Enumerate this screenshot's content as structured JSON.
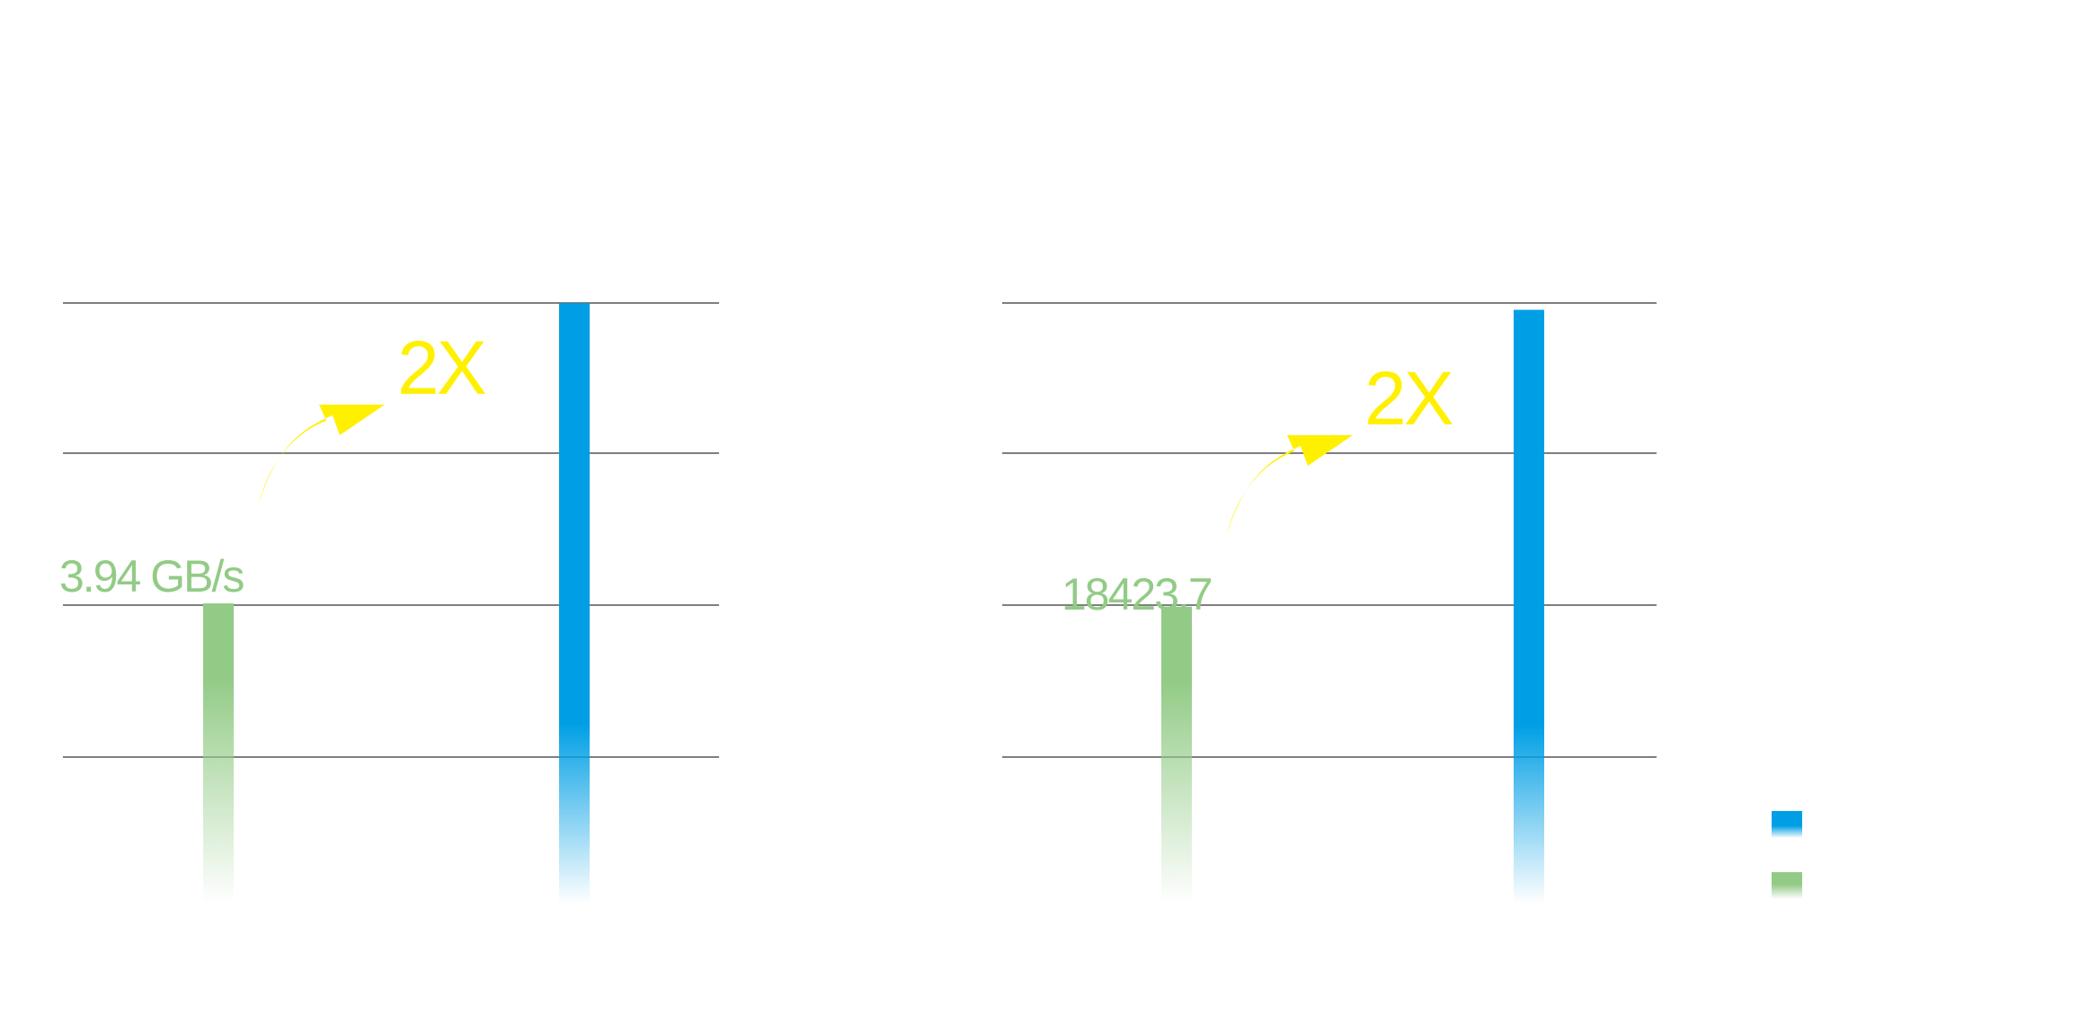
{
  "chart_data": [
    {
      "type": "bar",
      "categories": [
        "",
        ""
      ],
      "values": [
        3.94,
        7.88
      ],
      "value_labels": [
        "3.94 GB/s",
        ""
      ],
      "multiplier_label": "2X",
      "ylim": [
        0,
        8
      ],
      "grid": true,
      "bar_colors": [
        "#92CB86",
        "#009FE5"
      ]
    },
    {
      "type": "bar",
      "categories": [
        "",
        ""
      ],
      "values": [
        18423.7,
        36847.4
      ],
      "value_labels": [
        "18423.7",
        ""
      ],
      "multiplier_label": "2X",
      "ylim": [
        0,
        39000
      ],
      "grid": true,
      "bar_colors": [
        "#92CB86",
        "#009FE5"
      ]
    }
  ],
  "legend": {
    "placement": "bottom-right",
    "items": [
      {
        "label": "",
        "color": "#009FE5"
      },
      {
        "label": "",
        "color": "#92CB86"
      }
    ]
  },
  "colors": {
    "green": "#92CB86",
    "blue": "#009FE5",
    "accent": "#FFF000",
    "grid": "#555555"
  }
}
